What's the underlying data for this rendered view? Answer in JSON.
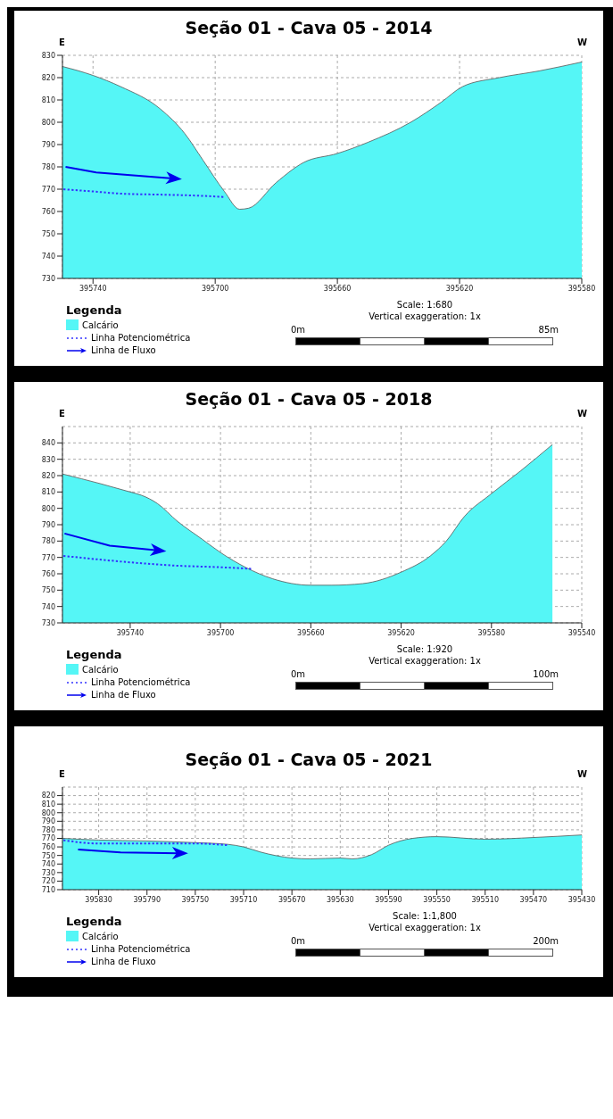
{
  "chart_data": [
    {
      "type": "area",
      "title": "Seção 01 - Cava 05 - 2014",
      "legend_title": "Legenda",
      "legend": "bottom left",
      "grid": true,
      "annotations": [
        "E",
        "W",
        "Scale: 1:680",
        "Vertical exaggeration: 1x",
        "0m",
        "85m",
        "Linha de Fluxo"
      ],
      "xlim": [
        395750,
        395580
      ],
      "xticks": [
        395740,
        395700,
        395660,
        395620,
        395580
      ],
      "ylim": [
        730,
        830
      ],
      "yticks": [
        730,
        740,
        750,
        760,
        770,
        780,
        790,
        800,
        810,
        820,
        830
      ],
      "series": [
        {
          "name": "Calcário",
          "type": "area",
          "color": "#55f6f6",
          "x": [
            395750,
            395740,
            395731,
            395718,
            395710,
            395704,
            395697,
            395692,
            395689,
            395680,
            395671,
            395660,
            395650,
            395636,
            395626,
            395619,
            395607,
            395594,
            395580
          ],
          "values": [
            825,
            821,
            816,
            806,
            795,
            783,
            769,
            761,
            761.5,
            773,
            782,
            786,
            791,
            800,
            809,
            816,
            820,
            823,
            827
          ]
        },
        {
          "name": "Linha Potenciométrica",
          "type": "line",
          "color": "#3333ff",
          "line_style": "dotted",
          "x": [
            395750,
            395740,
            395731,
            395716,
            395704,
            395697
          ],
          "values": [
            770,
            769,
            768,
            767.5,
            767,
            766.5
          ]
        }
      ]
    },
    {
      "type": "area",
      "title": "Seção 01 - Cava 05 - 2018",
      "legend_title": "Legenda",
      "legend": "bottom left",
      "grid": true,
      "annotations": [
        "E",
        "W",
        "Scale: 1:920",
        "Vertical exaggeration: 1x",
        "0m",
        "100m",
        "Linha de Fluxo"
      ],
      "xlim": [
        395770,
        395540
      ],
      "xticks": [
        395740,
        395700,
        395660,
        395620,
        395580,
        395540
      ],
      "ylim": [
        730,
        850
      ],
      "yticks": [
        730,
        740,
        750,
        760,
        770,
        780,
        790,
        800,
        810,
        820,
        830,
        840
      ],
      "series": [
        {
          "name": "Calcário",
          "type": "area",
          "color": "#55f6f6",
          "x": [
            395770,
            395753,
            395740,
            395735,
            395728,
            395719,
            395708,
            395700,
            395689,
            395677,
            395660,
            395651,
            395637,
            395620,
            395607,
            395600,
            395592,
            395580,
            395567,
            395553
          ],
          "values": [
            821,
            815,
            810,
            808,
            803,
            792,
            781,
            773,
            764,
            757,
            753,
            753,
            754,
            761,
            771,
            780,
            795,
            809,
            823,
            839
          ]
        },
        {
          "name": "Linha Potenciométrica",
          "type": "line",
          "color": "#3333ff",
          "line_style": "dotted",
          "x": [
            395770,
            395740,
            395720,
            395700,
            395686
          ],
          "values": [
            771,
            767,
            765,
            764,
            763
          ]
        }
      ]
    },
    {
      "type": "area",
      "title": "Seção 01 - Cava 05 - 2021",
      "legend_title": "Legenda",
      "legend": "bottom left",
      "grid": true,
      "annotations": [
        "E",
        "W",
        "Scale: 1:1,800",
        "Vertical exaggeration: 1x",
        "0m",
        "200m",
        "Linha de Fluxo"
      ],
      "xlim": [
        395860,
        395430
      ],
      "xticks": [
        395830,
        395790,
        395750,
        395710,
        395670,
        395630,
        395590,
        395550,
        395510,
        395470,
        395430
      ],
      "ylim": [
        710,
        830
      ],
      "yticks": [
        710,
        720,
        730,
        740,
        750,
        760,
        770,
        780,
        790,
        800,
        810,
        820
      ],
      "series": [
        {
          "name": "Calcário",
          "type": "area",
          "color": "#55f6f6",
          "x": [
            395860,
            395830,
            395790,
            395750,
            395723,
            395710,
            395696,
            395670,
            395655,
            395630,
            395620,
            395604,
            395590,
            395570,
            395550,
            395510,
            395470,
            395430
          ],
          "values": [
            770,
            768,
            767,
            765,
            763,
            760,
            754,
            747,
            746,
            747,
            746,
            751,
            762,
            770,
            772,
            769,
            771,
            774
          ]
        },
        {
          "name": "Linha Potenciométrica",
          "type": "line",
          "color": "#3333ff",
          "line_style": "dotted",
          "x": [
            395860,
            395830,
            395790,
            395750,
            395723
          ],
          "values": [
            768,
            764,
            764,
            764,
            762
          ]
        }
      ]
    }
  ]
}
